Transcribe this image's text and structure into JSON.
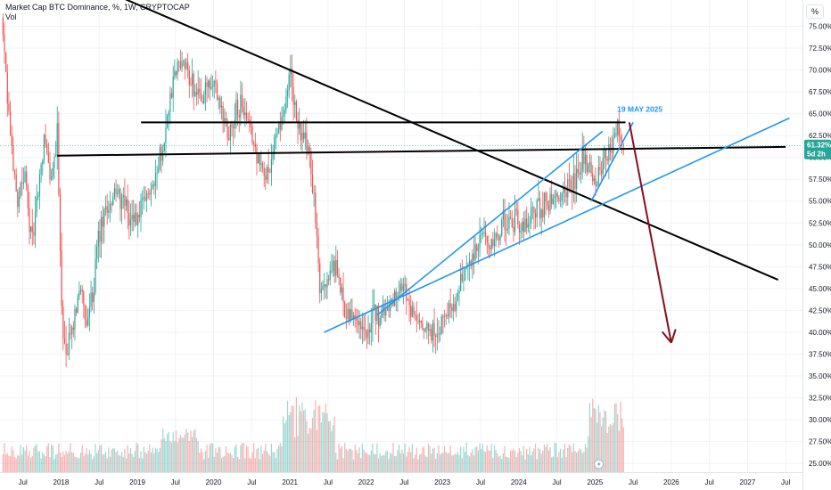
{
  "legend": {
    "title": "Market Cap BTC Dominance, %, 1W, CRYPTOCAP",
    "volume_label": "Vol"
  },
  "scale_button": "%",
  "last_price": {
    "value": "61.32%",
    "countdown": "5d 2h",
    "numeric": 61.32,
    "color": "#26a69a"
  },
  "colors": {
    "up": "#26a69a",
    "down": "#ef5350",
    "channel": "#2196f3",
    "trend": "#000000",
    "forecast": "#880e1f"
  },
  "chart_data": {
    "type": "candlestick",
    "y_axis_ticks": [
      "25.00%",
      "27.50%",
      "30.00%",
      "32.50%",
      "35.00%",
      "37.50%",
      "40.00%",
      "42.50%",
      "45.00%",
      "47.50%",
      "50.00%",
      "52.50%",
      "55.00%",
      "57.50%",
      "60.00%",
      "62.50%",
      "65.00%",
      "67.50%",
      "70.00%",
      "72.50%",
      "75.00%"
    ],
    "y_tick_values": [
      25,
      27.5,
      30,
      32.5,
      35,
      37.5,
      40,
      42.5,
      45,
      47.5,
      50,
      52.5,
      55,
      57.5,
      60,
      62.5,
      65,
      67.5,
      70,
      72.5,
      75
    ],
    "ylim": [
      24.0,
      78.0
    ],
    "x_axis_ticks": [
      {
        "label": "Jul",
        "t": 2017.5
      },
      {
        "label": "2018",
        "t": 2018.0
      },
      {
        "label": "Jul",
        "t": 2018.5
      },
      {
        "label": "2019",
        "t": 2019.0
      },
      {
        "label": "Jul",
        "t": 2019.5
      },
      {
        "label": "2020",
        "t": 2020.0
      },
      {
        "label": "Jul",
        "t": 2020.5
      },
      {
        "label": "2021",
        "t": 2021.0
      },
      {
        "label": "Jul",
        "t": 2021.5
      },
      {
        "label": "2022",
        "t": 2022.0
      },
      {
        "label": "Jul",
        "t": 2022.5
      },
      {
        "label": "2023",
        "t": 2023.0
      },
      {
        "label": "Jul",
        "t": 2023.5
      },
      {
        "label": "2024",
        "t": 2024.0
      },
      {
        "label": "Jul",
        "t": 2024.5
      },
      {
        "label": "2025",
        "t": 2025.0
      },
      {
        "label": "Jul",
        "t": 2025.5
      },
      {
        "label": "2026",
        "t": 2026.0
      },
      {
        "label": "Jul",
        "t": 2026.5
      },
      {
        "label": "2027",
        "t": 2027.0
      },
      {
        "label": "Jul",
        "t": 2027.5
      }
    ],
    "xlim": [
      2017.2,
      2027.72
    ],
    "price_path": [
      [
        2017.22,
        76
      ],
      [
        2017.3,
        66
      ],
      [
        2017.42,
        55
      ],
      [
        2017.52,
        58
      ],
      [
        2017.62,
        50
      ],
      [
        2017.7,
        56
      ],
      [
        2017.78,
        62
      ],
      [
        2017.88,
        57
      ],
      [
        2017.95,
        63
      ],
      [
        2018.0,
        45
      ],
      [
        2018.05,
        37
      ],
      [
        2018.15,
        40
      ],
      [
        2018.25,
        46
      ],
      [
        2018.33,
        40
      ],
      [
        2018.42,
        45
      ],
      [
        2018.5,
        51
      ],
      [
        2018.6,
        54
      ],
      [
        2018.7,
        56
      ],
      [
        2018.8,
        55
      ],
      [
        2018.9,
        53
      ],
      [
        2019.0,
        53
      ],
      [
        2019.1,
        55
      ],
      [
        2019.2,
        57
      ],
      [
        2019.3,
        60
      ],
      [
        2019.38,
        64
      ],
      [
        2019.48,
        69
      ],
      [
        2019.56,
        71
      ],
      [
        2019.65,
        70
      ],
      [
        2019.75,
        68
      ],
      [
        2019.85,
        67
      ],
      [
        2019.95,
        68
      ],
      [
        2020.02,
        68
      ],
      [
        2020.12,
        65
      ],
      [
        2020.2,
        63
      ],
      [
        2020.28,
        65
      ],
      [
        2020.36,
        66
      ],
      [
        2020.44,
        64
      ],
      [
        2020.52,
        62
      ],
      [
        2020.6,
        59
      ],
      [
        2020.68,
        58
      ],
      [
        2020.76,
        60
      ],
      [
        2020.84,
        63
      ],
      [
        2020.92,
        65
      ],
      [
        2021.0,
        70
      ],
      [
        2021.08,
        65
      ],
      [
        2021.16,
        62
      ],
      [
        2021.24,
        61
      ],
      [
        2021.32,
        55
      ],
      [
        2021.4,
        44
      ],
      [
        2021.48,
        46
      ],
      [
        2021.56,
        48
      ],
      [
        2021.64,
        46
      ],
      [
        2021.72,
        43
      ],
      [
        2021.8,
        42
      ],
      [
        2021.88,
        42
      ],
      [
        2021.96,
        40
      ],
      [
        2022.04,
        41
      ],
      [
        2022.12,
        42
      ],
      [
        2022.2,
        42
      ],
      [
        2022.28,
        43
      ],
      [
        2022.36,
        44
      ],
      [
        2022.44,
        46
      ],
      [
        2022.52,
        44
      ],
      [
        2022.6,
        42
      ],
      [
        2022.68,
        41
      ],
      [
        2022.76,
        40
      ],
      [
        2022.84,
        40
      ],
      [
        2022.92,
        40
      ],
      [
        2023.0,
        41
      ],
      [
        2023.08,
        43
      ],
      [
        2023.16,
        43
      ],
      [
        2023.24,
        46
      ],
      [
        2023.32,
        48
      ],
      [
        2023.4,
        48
      ],
      [
        2023.48,
        50
      ],
      [
        2023.56,
        51
      ],
      [
        2023.64,
        50
      ],
      [
        2023.72,
        51
      ],
      [
        2023.8,
        53
      ],
      [
        2023.88,
        52
      ],
      [
        2023.96,
        53
      ],
      [
        2024.04,
        52
      ],
      [
        2024.12,
        53
      ],
      [
        2024.2,
        54
      ],
      [
        2024.28,
        54
      ],
      [
        2024.36,
        55
      ],
      [
        2024.44,
        55
      ],
      [
        2024.52,
        55
      ],
      [
        2024.6,
        56
      ],
      [
        2024.68,
        57
      ],
      [
        2024.76,
        58
      ],
      [
        2024.84,
        60
      ],
      [
        2024.92,
        59
      ],
      [
        2025.0,
        57
      ],
      [
        2025.08,
        59
      ],
      [
        2025.16,
        61
      ],
      [
        2025.24,
        62
      ],
      [
        2025.3,
        64
      ],
      [
        2025.38,
        61.32
      ]
    ],
    "annotations": [
      {
        "text": "19 MAY 2025",
        "t": 2025.36,
        "v": 65.2,
        "color": "#2196f3"
      }
    ],
    "trend_lines": [
      {
        "kind": "resistance-falling",
        "color": "#000000",
        "p1": [
          2018.6,
          79
        ],
        "p2": [
          2027.4,
          46
        ]
      },
      {
        "kind": "horizontal-upper",
        "color": "#000000",
        "p1": [
          2019.05,
          64
        ],
        "p2": [
          2025.4,
          64
        ]
      },
      {
        "kind": "horizontal-lower",
        "color": "#000000",
        "p1": [
          2017.95,
          60.2
        ],
        "p2": [
          2027.5,
          61.2
        ]
      },
      {
        "kind": "channel-lower",
        "color": "#2196f3",
        "p1": [
          2021.45,
          40
        ],
        "p2": [
          2027.55,
          64.5
        ]
      },
      {
        "kind": "channel-upper",
        "color": "#2196f3",
        "p1": [
          2022.15,
          42
        ],
        "p2": [
          2025.1,
          63
        ]
      },
      {
        "kind": "wedge-inner",
        "color": "#2196f3",
        "p1": [
          2024.95,
          55
        ],
        "p2": [
          2025.5,
          64
        ]
      }
    ],
    "forecast_arrow": {
      "color": "#880e1f",
      "from": [
        2025.45,
        64
      ],
      "to": [
        2026.0,
        38.8
      ]
    }
  }
}
